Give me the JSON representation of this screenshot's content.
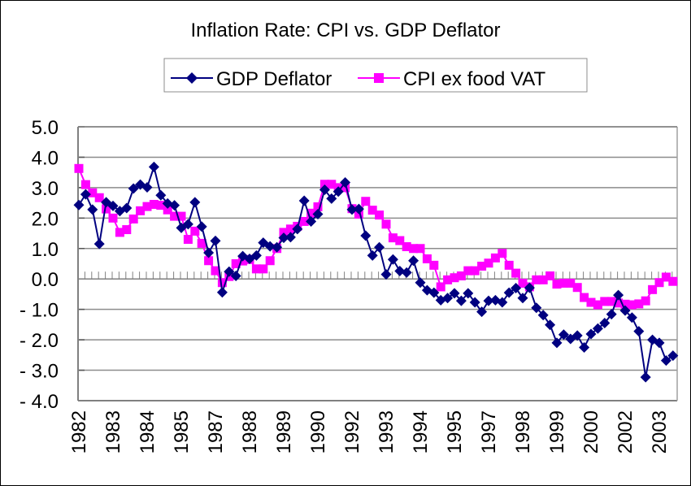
{
  "chart_data": {
    "type": "line",
    "title": "Inflation Rate: CPI vs. GDP Deflator",
    "xlabel": "",
    "ylabel": "",
    "ylim": [
      -4.0,
      5.0
    ],
    "yticks": [
      "5.0",
      "4.0",
      "3.0",
      "2.0",
      "1.0",
      "0.0",
      "- 1.0",
      "- 2.0",
      "- 3.0",
      "- 4.0"
    ],
    "ytick_values": [
      5,
      4,
      3,
      2,
      1,
      0,
      -1,
      -2,
      -3,
      -4
    ],
    "grid": true,
    "legend_position": "top-center",
    "x_count": 88,
    "x_period": "quarterly, 1982Q1 to 2003Q4",
    "x_tick_labels": [
      {
        "index": 0,
        "label": "1982"
      },
      {
        "index": 5,
        "label": "1983"
      },
      {
        "index": 10,
        "label": "1984"
      },
      {
        "index": 15,
        "label": "1985"
      },
      {
        "index": 20,
        "label": "1987"
      },
      {
        "index": 25,
        "label": "1988"
      },
      {
        "index": 30,
        "label": "1989"
      },
      {
        "index": 35,
        "label": "1990"
      },
      {
        "index": 40,
        "label": "1992"
      },
      {
        "index": 45,
        "label": "1993"
      },
      {
        "index": 50,
        "label": "1994"
      },
      {
        "index": 55,
        "label": "1995"
      },
      {
        "index": 60,
        "label": "1997"
      },
      {
        "index": 65,
        "label": "1998"
      },
      {
        "index": 70,
        "label": "1999"
      },
      {
        "index": 75,
        "label": "2000"
      },
      {
        "index": 80,
        "label": "2002"
      },
      {
        "index": 85,
        "label": "2003"
      }
    ],
    "series": [
      {
        "name": "GDP Deflator",
        "color": "#000080",
        "marker": "diamond",
        "values": [
          2.43,
          2.78,
          2.28,
          1.15,
          2.52,
          2.4,
          2.23,
          2.33,
          2.97,
          3.1,
          3.01,
          3.68,
          2.75,
          2.48,
          2.42,
          1.68,
          1.8,
          2.52,
          1.72,
          0.86,
          1.25,
          -0.44,
          0.24,
          0.1,
          0.75,
          0.66,
          0.77,
          1.19,
          1.07,
          1.04,
          1.35,
          1.37,
          1.64,
          2.57,
          1.89,
          2.13,
          2.93,
          2.64,
          2.87,
          3.17,
          2.28,
          2.3,
          1.42,
          0.77,
          1.04,
          0.15,
          0.64,
          0.26,
          0.21,
          0.6,
          -0.12,
          -0.37,
          -0.45,
          -0.7,
          -0.63,
          -0.47,
          -0.72,
          -0.47,
          -0.77,
          -1.08,
          -0.72,
          -0.7,
          -0.77,
          -0.45,
          -0.3,
          -0.63,
          -0.29,
          -0.95,
          -1.19,
          -1.51,
          -2.1,
          -1.83,
          -1.97,
          -1.86,
          -2.25,
          -1.81,
          -1.63,
          -1.45,
          -1.16,
          -0.53,
          -1.04,
          -1.27,
          -1.72,
          -3.23,
          -2.0,
          -2.1,
          -2.68,
          -2.52
        ]
      },
      {
        "name": "CPI ex food VAT",
        "color": "#FF00FF",
        "marker": "square",
        "values": [
          3.63,
          3.1,
          2.83,
          2.67,
          2.3,
          2.0,
          1.53,
          1.62,
          1.97,
          2.24,
          2.38,
          2.45,
          2.42,
          2.27,
          2.06,
          2.06,
          1.3,
          1.57,
          1.17,
          0.6,
          0.27,
          -0.12,
          0.08,
          0.5,
          0.59,
          0.64,
          0.33,
          0.33,
          0.6,
          1.0,
          1.53,
          1.64,
          1.73,
          1.89,
          2.16,
          2.37,
          3.11,
          3.11,
          3.0,
          3.0,
          2.31,
          2.13,
          2.55,
          2.26,
          2.1,
          1.8,
          1.35,
          1.26,
          1.06,
          1.0,
          1.0,
          0.66,
          0.45,
          -0.26,
          -0.03,
          0.04,
          0.1,
          0.27,
          0.27,
          0.42,
          0.52,
          0.69,
          0.84,
          0.45,
          0.19,
          -0.14,
          -0.26,
          -0.03,
          -0.03,
          0.1,
          -0.17,
          -0.14,
          -0.14,
          -0.28,
          -0.61,
          -0.77,
          -0.85,
          -0.74,
          -0.74,
          -0.79,
          -0.83,
          -0.85,
          -0.82,
          -0.72,
          -0.35,
          -0.12,
          0.06,
          -0.08
        ]
      }
    ]
  }
}
